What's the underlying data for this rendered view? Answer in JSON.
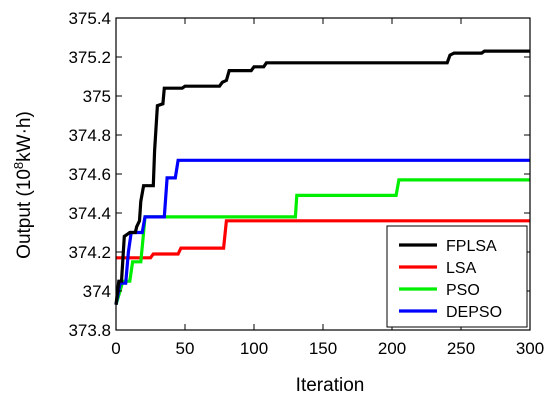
{
  "chart_data": {
    "type": "line",
    "xlabel": "Iteration",
    "ylabel_main": "Output (10",
    "ylabel_sup": "8",
    "ylabel_unit": "kW·h)",
    "xlim": [
      0,
      300
    ],
    "ylim": [
      373.8,
      375.4
    ],
    "xticks": [
      0,
      50,
      100,
      150,
      200,
      250,
      300
    ],
    "xtick_labels": [
      "0",
      "50",
      "100",
      "150",
      "200",
      "250",
      "300"
    ],
    "yticks": [
      373.8,
      374,
      374.2,
      374.4,
      374.6,
      374.8,
      375,
      375.2,
      375.4
    ],
    "ytick_labels": [
      "373.8",
      "374",
      "374.2",
      "374.4",
      "374.6",
      "374.8",
      "375",
      "375.2",
      "375.4"
    ],
    "legend_position": "bottom-right",
    "series": [
      {
        "name": "FPLSA",
        "color": "#000000",
        "points": [
          [
            0,
            373.93
          ],
          [
            2,
            374.05
          ],
          [
            4,
            374.05
          ],
          [
            6,
            374.28
          ],
          [
            10,
            374.3
          ],
          [
            14,
            374.3
          ],
          [
            15,
            374.33
          ],
          [
            17,
            374.36
          ],
          [
            18,
            374.46
          ],
          [
            20,
            374.54
          ],
          [
            27,
            374.54
          ],
          [
            28,
            374.72
          ],
          [
            30,
            374.95
          ],
          [
            34,
            374.96
          ],
          [
            35,
            375.04
          ],
          [
            48,
            375.04
          ],
          [
            50,
            375.05
          ],
          [
            75,
            375.05
          ],
          [
            77,
            375.07
          ],
          [
            80,
            375.08
          ],
          [
            82,
            375.13
          ],
          [
            98,
            375.13
          ],
          [
            100,
            375.15
          ],
          [
            107,
            375.15
          ],
          [
            109,
            375.17
          ],
          [
            240,
            375.17
          ],
          [
            242,
            375.21
          ],
          [
            245,
            375.22
          ],
          [
            265,
            375.22
          ],
          [
            267,
            375.23
          ],
          [
            300,
            375.23
          ]
        ]
      },
      {
        "name": "LSA",
        "color": "#ff0000",
        "points": [
          [
            0,
            374.17
          ],
          [
            25,
            374.17
          ],
          [
            27,
            374.19
          ],
          [
            45,
            374.19
          ],
          [
            47,
            374.22
          ],
          [
            78,
            374.22
          ],
          [
            80,
            374.36
          ],
          [
            300,
            374.36
          ]
        ]
      },
      {
        "name": "PSO",
        "color": "#00ee00",
        "points": [
          [
            0,
            373.93
          ],
          [
            5,
            374.05
          ],
          [
            10,
            374.05
          ],
          [
            12,
            374.15
          ],
          [
            18,
            374.15
          ],
          [
            20,
            374.3
          ],
          [
            21,
            374.38
          ],
          [
            130,
            374.38
          ],
          [
            131,
            374.49
          ],
          [
            203,
            374.49
          ],
          [
            205,
            374.57
          ],
          [
            300,
            374.57
          ]
        ]
      },
      {
        "name": "DEPSO",
        "color": "#0000ff",
        "points": [
          [
            0,
            373.93
          ],
          [
            3,
            374.04
          ],
          [
            7,
            374.04
          ],
          [
            9,
            374.2
          ],
          [
            11,
            374.3
          ],
          [
            19,
            374.3
          ],
          [
            21,
            374.38
          ],
          [
            35,
            374.38
          ],
          [
            37,
            374.58
          ],
          [
            43,
            374.58
          ],
          [
            45,
            374.67
          ],
          [
            300,
            374.67
          ]
        ]
      }
    ]
  }
}
